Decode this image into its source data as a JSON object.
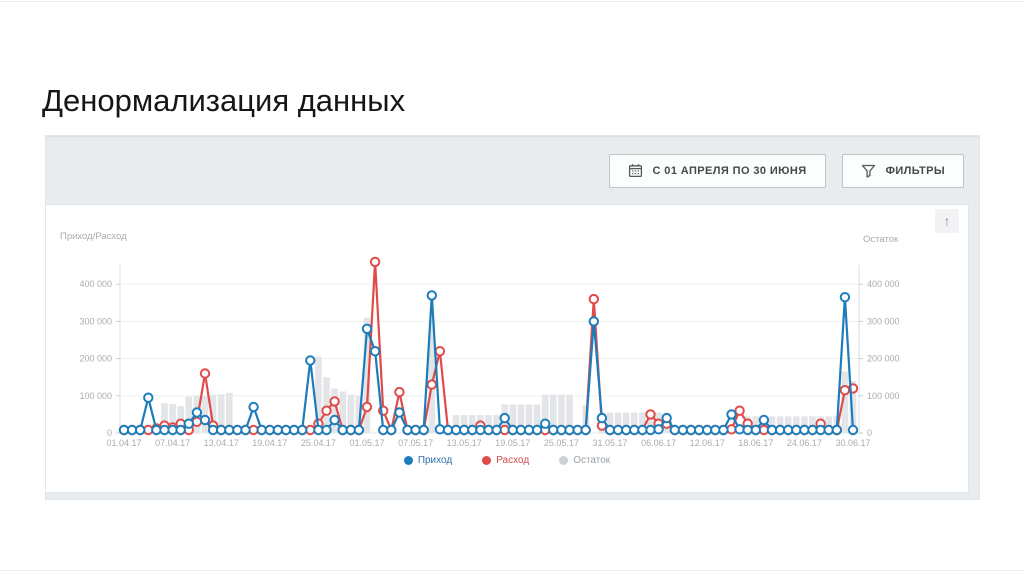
{
  "slide": {
    "title": "Денормализация данных"
  },
  "toolbar": {
    "date_range_button": {
      "label": "С 01 АПРЕЛЯ ПО 30 ИЮНЯ",
      "icon": "calendar-icon"
    },
    "filters_button": {
      "label": "ФИЛЬТРЫ",
      "icon": "filter-icon"
    }
  },
  "panel": {
    "scroll_top_button": "↑"
  },
  "colors": {
    "income": "#1d7cba",
    "expense": "#e04b49",
    "balance_bar": "#e3e5e8",
    "axis_text": "#a7acb1",
    "grid": "#eef0f3",
    "axis_line": "#d9dce0",
    "legend_gray_text": "#9aa0a6",
    "legend_gray_dot": "#cdd1d5"
  },
  "chart_data": {
    "type": "line",
    "description": "Daily income/expense lines with balance bars, 01.04.17 - 30.06.17",
    "left_axis": {
      "title": "Приход/Расход",
      "ticks": [
        "0",
        "100 000",
        "200 000",
        "300 000",
        "400 000"
      ],
      "tick_values": [
        0,
        100000,
        200000,
        300000,
        400000
      ],
      "range": [
        0,
        450000
      ]
    },
    "right_axis": {
      "title": "Остаток",
      "ticks": [
        "0",
        "100 000",
        "200 000",
        "300 000",
        "400 000"
      ],
      "tick_values": [
        0,
        100000,
        200000,
        300000,
        400000
      ],
      "range": [
        0,
        450000
      ]
    },
    "x_tick_labels": [
      "01.04.17",
      "07.04.17",
      "13.04.17",
      "19.04.17",
      "25.04.17",
      "01.05.17",
      "07.05.17",
      "13.05.17",
      "19.05.17",
      "25.05.17",
      "31.05.17",
      "06.06.17",
      "12.06.17",
      "18.06.17",
      "24.06.17",
      "30.06.17"
    ],
    "x_tick_positions": [
      0,
      6,
      12,
      18,
      24,
      30,
      36,
      42,
      48,
      54,
      60,
      66,
      72,
      78,
      84,
      90
    ],
    "days": 91,
    "grid": true,
    "legend_position": "bottom",
    "series": [
      {
        "name": "Приход",
        "type": "line",
        "axis": "left",
        "color": "#1d7cba",
        "values": [
          8000,
          8000,
          8000,
          95000,
          8000,
          8000,
          8000,
          8000,
          25000,
          55000,
          35000,
          8000,
          8000,
          8000,
          8000,
          8000,
          70000,
          8000,
          8000,
          8000,
          8000,
          8000,
          8000,
          195000,
          8000,
          8000,
          35000,
          8000,
          8000,
          8000,
          280000,
          220000,
          8000,
          8000,
          55000,
          8000,
          8000,
          8000,
          370000,
          10000,
          8000,
          8000,
          8000,
          8000,
          8000,
          8000,
          8000,
          40000,
          8000,
          8000,
          8000,
          8000,
          25000,
          8000,
          8000,
          8000,
          8000,
          8000,
          300000,
          40000,
          8000,
          8000,
          8000,
          8000,
          8000,
          8000,
          10000,
          40000,
          8000,
          8000,
          8000,
          8000,
          8000,
          8000,
          8000,
          50000,
          10000,
          8000,
          8000,
          35000,
          8000,
          8000,
          8000,
          8000,
          8000,
          8000,
          8000,
          8000,
          8000,
          365000,
          8000
        ]
      },
      {
        "name": "Расход",
        "type": "line",
        "axis": "left",
        "color": "#e04b49",
        "values": [
          8000,
          8000,
          8000,
          8000,
          12000,
          20000,
          15000,
          25000,
          8000,
          30000,
          160000,
          20000,
          8000,
          8000,
          8000,
          8000,
          8000,
          8000,
          8000,
          8000,
          8000,
          8000,
          8000,
          8000,
          25000,
          60000,
          85000,
          8000,
          8000,
          8000,
          70000,
          460000,
          60000,
          8000,
          110000,
          8000,
          8000,
          8000,
          130000,
          220000,
          8000,
          8000,
          8000,
          8000,
          20000,
          8000,
          8000,
          8000,
          8000,
          8000,
          8000,
          8000,
          8000,
          8000,
          8000,
          8000,
          8000,
          8000,
          360000,
          20000,
          8000,
          8000,
          8000,
          8000,
          8000,
          50000,
          25000,
          25000,
          8000,
          8000,
          8000,
          8000,
          8000,
          8000,
          8000,
          10000,
          60000,
          25000,
          8000,
          8000,
          8000,
          8000,
          8000,
          8000,
          8000,
          8000,
          25000,
          8000,
          8000,
          115000,
          120000
        ]
      },
      {
        "name": "Остаток",
        "type": "bar",
        "axis": "right",
        "color": "#e3e5e8",
        "values": [
          0,
          0,
          0,
          0,
          0,
          80000,
          78000,
          72000,
          98000,
          100000,
          100000,
          103000,
          104000,
          108000,
          0,
          0,
          0,
          0,
          0,
          0,
          0,
          0,
          0,
          0,
          205000,
          150000,
          120000,
          112000,
          103000,
          100000,
          310000,
          0,
          0,
          0,
          0,
          0,
          0,
          0,
          305000,
          0,
          0,
          48000,
          48000,
          48000,
          48000,
          48000,
          48000,
          77000,
          77000,
          77000,
          77000,
          77000,
          103000,
          103000,
          103000,
          103000,
          0,
          75000,
          0,
          55000,
          55000,
          55000,
          55000,
          55000,
          55000,
          55000,
          55000,
          55000,
          15000,
          15000,
          15000,
          15000,
          15000,
          15000,
          15000,
          15000,
          15000,
          45000,
          45000,
          45000,
          45000,
          45000,
          45000,
          45000,
          45000,
          45000,
          45000,
          45000,
          45000,
          165000,
          140000
        ]
      }
    ],
    "legend": [
      {
        "label": "Приход",
        "dot_color": "#1d7cba",
        "text_color": "#2a6fae"
      },
      {
        "label": "Расход",
        "dot_color": "#e04b49",
        "text_color": "#cf4d4d"
      },
      {
        "label": "Остаток",
        "dot_color": "#cdd1d5",
        "text_color": "#9aa0a6"
      }
    ]
  }
}
